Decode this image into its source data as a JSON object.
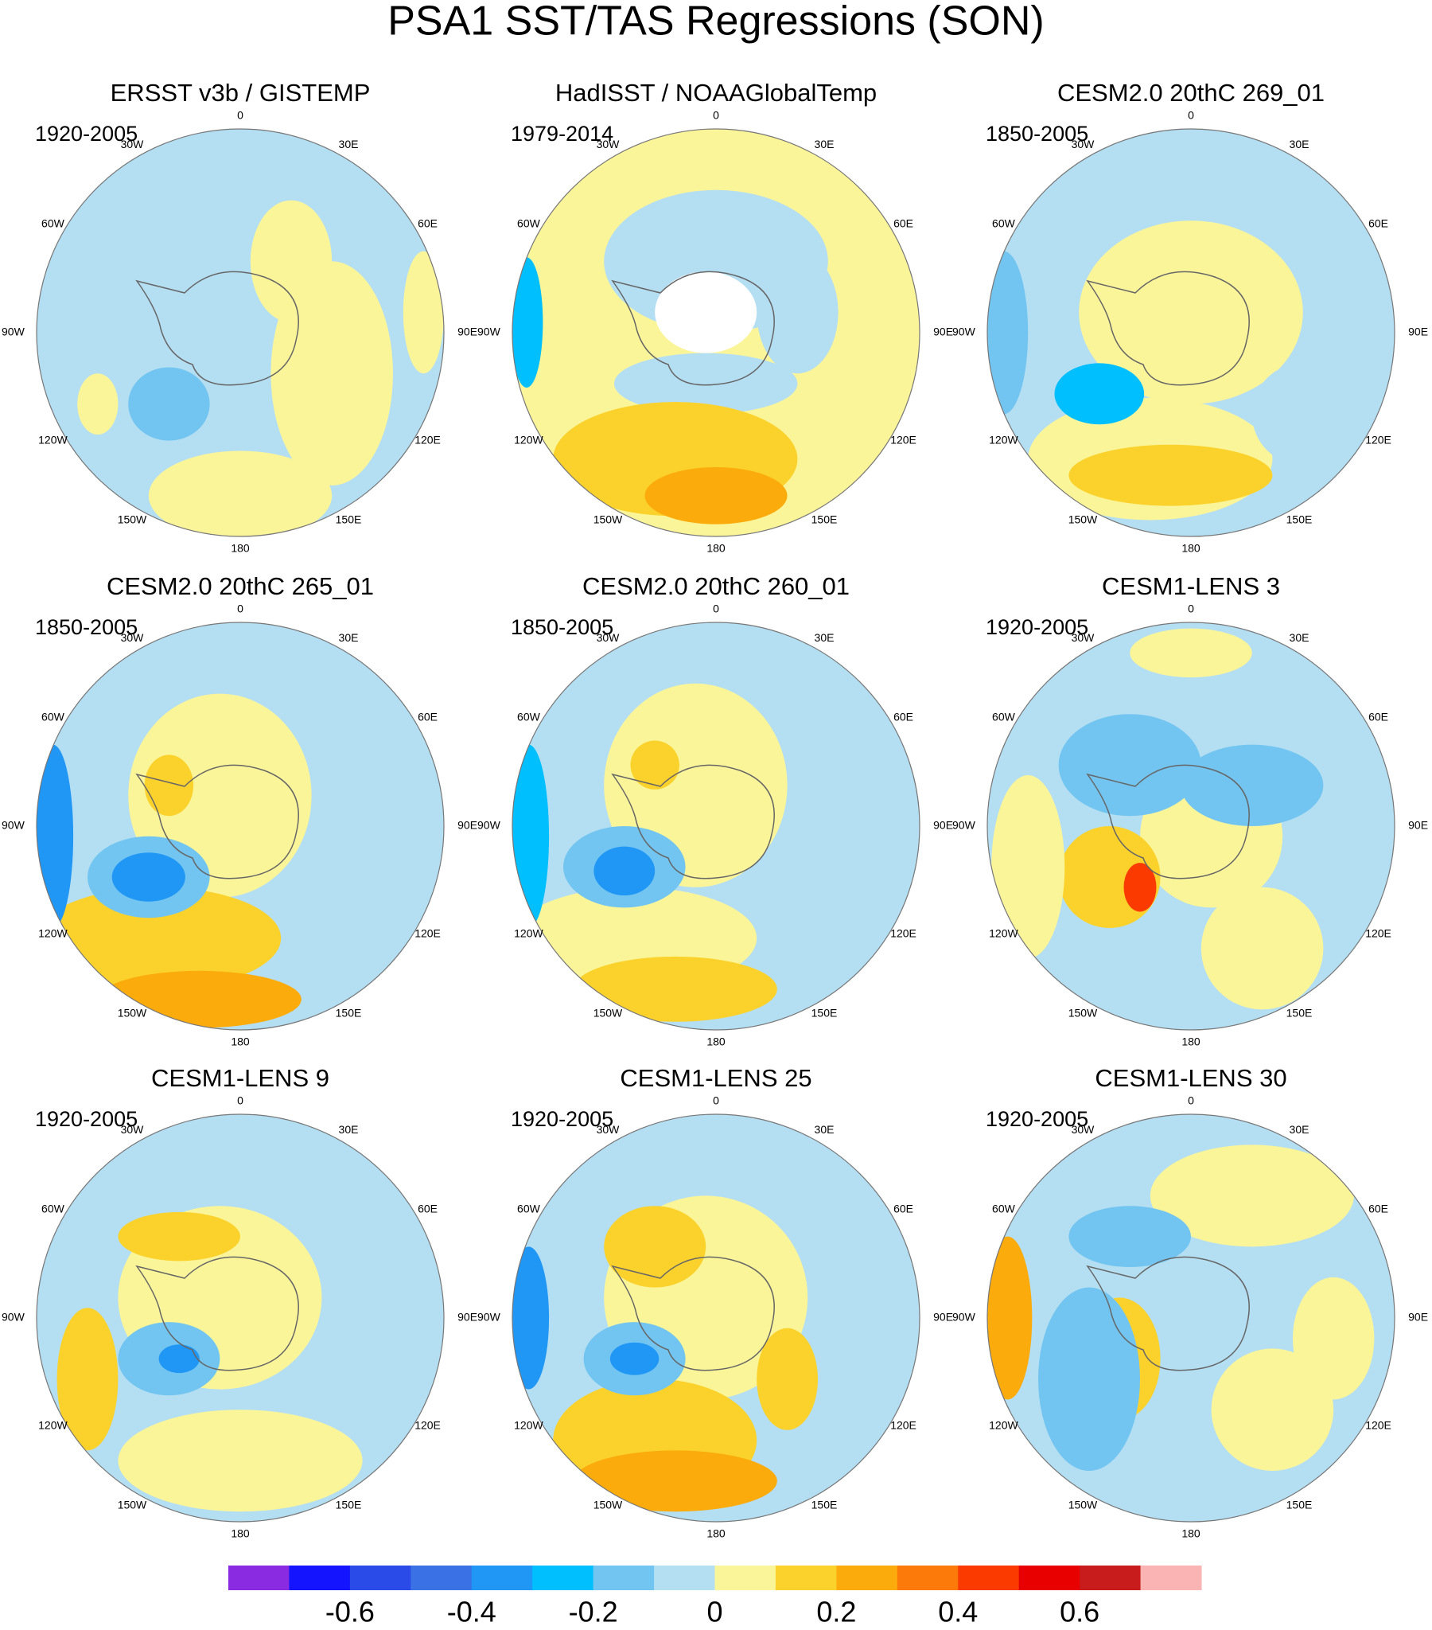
{
  "title": "PSA1 SST/TAS Regressions (SON)",
  "lon_labels": [
    "0",
    "30E",
    "60E",
    "90E",
    "120E",
    "150E",
    "180",
    "150W",
    "120W",
    "90W",
    "60W",
    "30W"
  ],
  "panels": [
    {
      "title": "ERSST v3b / GISTEMP",
      "period": "1920-2005"
    },
    {
      "title": "HadISST / NOAAGlobalTemp",
      "period": "1979-2014"
    },
    {
      "title": "CESM2.0 20thC 269_01",
      "period": "1850-2005"
    },
    {
      "title": "CESM2.0 20thC 265_01",
      "period": "1850-2005"
    },
    {
      "title": "CESM2.0 20thC 260_01",
      "period": "1850-2005"
    },
    {
      "title": "CESM1-LENS 3",
      "period": "1920-2005"
    },
    {
      "title": "CESM1-LENS 9",
      "period": "1920-2005"
    },
    {
      "title": "CESM1-LENS 25",
      "period": "1920-2005"
    },
    {
      "title": "CESM1-LENS 30",
      "period": "1920-2005"
    }
  ],
  "colorbar": {
    "colors": [
      "#8a2be2",
      "#1414ff",
      "#2a4be8",
      "#3a72e6",
      "#2096f5",
      "#00bfff",
      "#72c5f0",
      "#b4def2",
      "#fbf59a",
      "#fbd22c",
      "#fbab0c",
      "#fb7a0a",
      "#fb3a00",
      "#e80000",
      "#c81b1b",
      "#fbb4b4"
    ],
    "lim": [
      -0.8,
      0.8
    ],
    "ticks": [
      -0.6,
      -0.4,
      -0.2,
      0,
      0.2,
      0.4,
      0.6
    ]
  }
}
